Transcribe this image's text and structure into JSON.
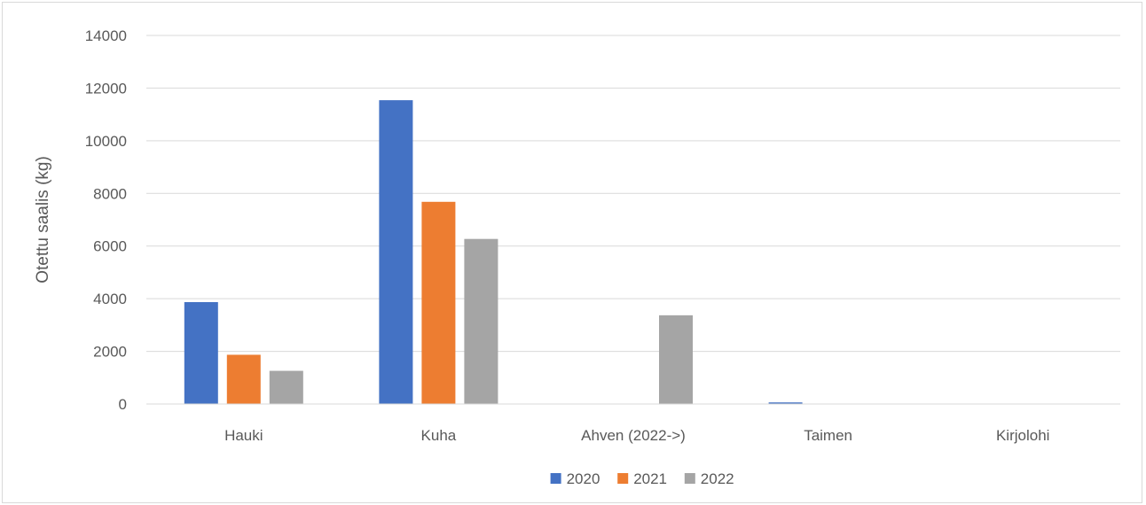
{
  "chart_data": {
    "type": "bar",
    "title": "",
    "xlabel": "",
    "ylabel": "Otettu saalis (kg)",
    "ylim": [
      0,
      14000
    ],
    "yticks": [
      0,
      2000,
      4000,
      6000,
      8000,
      10000,
      12000,
      14000
    ],
    "grid": true,
    "legend_position": "bottom",
    "categories": [
      "Hauki",
      "Kuha",
      "Ahven (2022->)",
      "Taimen",
      "Kirjolohi"
    ],
    "series": [
      {
        "name": "2020",
        "color": "#4472c4",
        "values": [
          3870,
          11540,
          0,
          60,
          0
        ]
      },
      {
        "name": "2021",
        "color": "#ed7d31",
        "values": [
          1870,
          7680,
          0,
          10,
          0
        ]
      },
      {
        "name": "2022",
        "color": "#a5a5a5",
        "values": [
          1260,
          6270,
          3370,
          5,
          0
        ]
      }
    ]
  }
}
